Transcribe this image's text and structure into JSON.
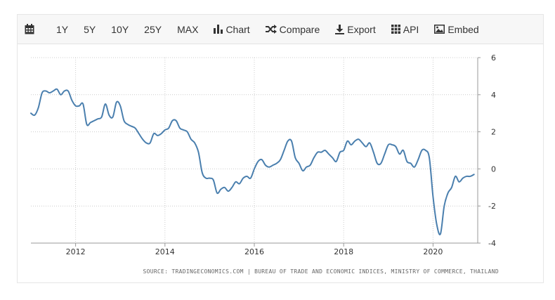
{
  "toolbar": {
    "items": [
      {
        "name": "calendar",
        "label": ""
      },
      {
        "name": "range-1y",
        "label": "1Y"
      },
      {
        "name": "range-5y",
        "label": "5Y"
      },
      {
        "name": "range-10y",
        "label": "10Y"
      },
      {
        "name": "range-25y",
        "label": "25Y"
      },
      {
        "name": "range-max",
        "label": "MAX"
      },
      {
        "name": "chart",
        "label": "Chart"
      },
      {
        "name": "compare",
        "label": "Compare"
      },
      {
        "name": "export",
        "label": "Export"
      },
      {
        "name": "api",
        "label": "API"
      },
      {
        "name": "embed",
        "label": "Embed"
      }
    ],
    "icons": {
      "calendar": "calendar-icon",
      "chart": "bar-chart-icon",
      "compare": "shuffle-icon",
      "export": "download-icon",
      "api": "grid-icon",
      "embed": "image-icon"
    }
  },
  "colors": {
    "line": "#4a7fae",
    "grid": "#cccccc",
    "toolbar_bg": "#f7f7f7"
  },
  "chart_data": {
    "type": "line",
    "title": "",
    "xlabel": "",
    "ylabel": "",
    "source": "SOURCE: TRADINGECONOMICS.COM | BUREAU OF TRADE AND ECONOMIC INDICES, MINISTRY OF COMMERCE, THAILAND",
    "ylim": [
      -4,
      6
    ],
    "y_ticks": [
      6,
      4,
      2,
      0,
      -2,
      -4
    ],
    "x_ticks": [
      "2012",
      "2014",
      "2016",
      "2018",
      "2020"
    ],
    "x_range": [
      "2011-01",
      "2020-12"
    ],
    "grid": true,
    "y_axis_side": "right",
    "series": [
      {
        "x": [
          "2011-01",
          "2011-02",
          "2011-03",
          "2011-04",
          "2011-05",
          "2011-06",
          "2011-07",
          "2011-08",
          "2011-09",
          "2011-10",
          "2011-11",
          "2011-12",
          "2012-01",
          "2012-02",
          "2012-03",
          "2012-04",
          "2012-05",
          "2012-06",
          "2012-07",
          "2012-08",
          "2012-09",
          "2012-10",
          "2012-11",
          "2012-12",
          "2013-01",
          "2013-02",
          "2013-03",
          "2013-04",
          "2013-05",
          "2013-06",
          "2013-07",
          "2013-08",
          "2013-09",
          "2013-10",
          "2013-11",
          "2013-12",
          "2014-01",
          "2014-02",
          "2014-03",
          "2014-04",
          "2014-05",
          "2014-06",
          "2014-07",
          "2014-08",
          "2014-09",
          "2014-10",
          "2014-11",
          "2014-12",
          "2015-01",
          "2015-02",
          "2015-03",
          "2015-04",
          "2015-05",
          "2015-06",
          "2015-07",
          "2015-08",
          "2015-09",
          "2015-10",
          "2015-11",
          "2015-12",
          "2016-01",
          "2016-02",
          "2016-03",
          "2016-04",
          "2016-05",
          "2016-06",
          "2016-07",
          "2016-08",
          "2016-09",
          "2016-10",
          "2016-11",
          "2016-12",
          "2017-01",
          "2017-02",
          "2017-03",
          "2017-04",
          "2017-05",
          "2017-06",
          "2017-07",
          "2017-08",
          "2017-09",
          "2017-10",
          "2017-11",
          "2017-12",
          "2018-01",
          "2018-02",
          "2018-03",
          "2018-04",
          "2018-05",
          "2018-06",
          "2018-07",
          "2018-08",
          "2018-09",
          "2018-10",
          "2018-11",
          "2018-12",
          "2019-01",
          "2019-02",
          "2019-03",
          "2019-04",
          "2019-05",
          "2019-06",
          "2019-07",
          "2019-08",
          "2019-09",
          "2019-10",
          "2019-11",
          "2019-12",
          "2020-01",
          "2020-02",
          "2020-03",
          "2020-04",
          "2020-05",
          "2020-06",
          "2020-07",
          "2020-08",
          "2020-09",
          "2020-10",
          "2020-11",
          "2020-12"
        ],
        "y": [
          3.0,
          2.9,
          3.3,
          4.1,
          4.2,
          4.1,
          4.2,
          4.3,
          4.0,
          4.2,
          4.2,
          3.7,
          3.4,
          3.4,
          3.5,
          2.4,
          2.5,
          2.6,
          2.7,
          2.8,
          3.5,
          2.9,
          2.8,
          3.6,
          3.4,
          2.6,
          2.4,
          2.3,
          2.2,
          1.9,
          1.6,
          1.4,
          1.4,
          1.9,
          1.8,
          1.9,
          2.1,
          2.2,
          2.6,
          2.6,
          2.2,
          2.1,
          2.0,
          1.6,
          1.4,
          0.9,
          -0.2,
          -0.5,
          -0.5,
          -0.6,
          -1.3,
          -1.1,
          -1.0,
          -1.2,
          -1.0,
          -0.7,
          -0.8,
          -0.5,
          -0.4,
          -0.5,
          0.0,
          0.4,
          0.5,
          0.2,
          0.1,
          0.2,
          0.3,
          0.5,
          1.0,
          1.5,
          1.5,
          0.6,
          0.3,
          -0.1,
          0.1,
          0.2,
          0.6,
          0.9,
          0.9,
          1.0,
          0.8,
          0.6,
          0.4,
          0.9,
          1.0,
          1.5,
          1.3,
          1.5,
          1.6,
          1.4,
          1.2,
          1.4,
          0.9,
          0.3,
          0.3,
          0.8,
          1.3,
          1.3,
          1.2,
          0.8,
          1.0,
          0.4,
          0.3,
          0.1,
          0.5,
          1.0,
          1.0,
          0.6,
          -1.5,
          -3.0,
          -3.5,
          -2.0,
          -1.3,
          -1.0,
          -0.4,
          -0.7,
          -0.5,
          -0.4,
          -0.4,
          -0.3
        ]
      }
    ]
  }
}
